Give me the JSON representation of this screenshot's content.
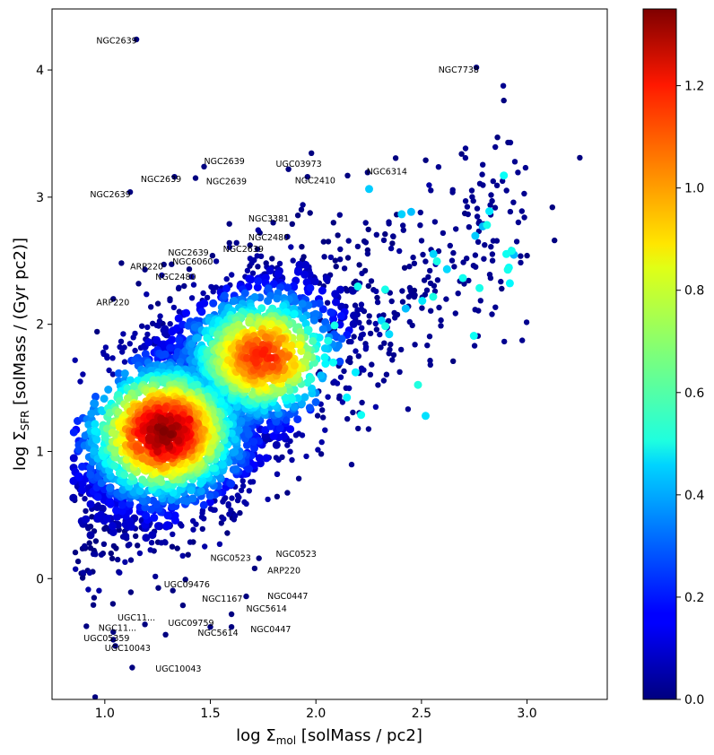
{
  "chart_data": {
    "type": "scatter",
    "xlabel_prefix": "log Σ",
    "xlabel_sub": "mol",
    "xlabel_suffix": " [solMass / pc2]",
    "ylabel_prefix": "log Σ",
    "ylabel_sub": "SFR",
    "ylabel_suffix": " [solMass / (Gyr pc2)]",
    "xlim": [
      0.75,
      3.38
    ],
    "ylim": [
      -0.95,
      4.48
    ],
    "xticks": [
      "1.0",
      "1.5",
      "2.0",
      "2.5",
      "3.0"
    ],
    "yticks": [
      "0",
      "1",
      "2",
      "3",
      "4"
    ],
    "colorbar": {
      "colormap": "jet",
      "range": [
        0.0,
        1.35
      ],
      "ticks": [
        "0.0",
        "0.2",
        "0.4",
        "0.6",
        "0.8",
        "1.0",
        "1.2"
      ]
    },
    "grid": false,
    "points_description": "several thousand points; density-colored; densest core near x≈1.3, y≈1.15",
    "points_sample": [
      {
        "x": 1.15,
        "y": 4.24,
        "c": 0.0
      },
      {
        "x": 2.76,
        "y": 4.02,
        "c": 0.0
      },
      {
        "x": 2.89,
        "y": 3.76,
        "c": 0.0
      },
      {
        "x": 3.25,
        "y": 3.31,
        "c": 0.0
      },
      {
        "x": 2.86,
        "y": 3.47,
        "c": 0.0
      },
      {
        "x": 2.91,
        "y": 3.43,
        "c": 0.0
      },
      {
        "x": 2.69,
        "y": 3.34,
        "c": 0.0
      },
      {
        "x": 2.52,
        "y": 3.29,
        "c": 0.0
      },
      {
        "x": 1.12,
        "y": 3.04,
        "c": 0.0
      },
      {
        "x": 1.33,
        "y": 3.16,
        "c": 0.0
      },
      {
        "x": 1.47,
        "y": 3.24,
        "c": 0.0
      },
      {
        "x": 1.43,
        "y": 3.15,
        "c": 0.0
      },
      {
        "x": 1.87,
        "y": 3.22,
        "c": 0.0
      },
      {
        "x": 1.96,
        "y": 3.16,
        "c": 0.0
      },
      {
        "x": 2.15,
        "y": 3.17,
        "c": 0.0
      },
      {
        "x": 1.59,
        "y": 2.79,
        "c": 0.0
      },
      {
        "x": 1.59,
        "y": 2.64,
        "c": 0.0
      },
      {
        "x": 1.51,
        "y": 2.54,
        "c": 0.0
      },
      {
        "x": 1.28,
        "y": 2.47,
        "c": 0.0
      },
      {
        "x": 1.19,
        "y": 2.43,
        "c": 0.0
      },
      {
        "x": 1.16,
        "y": 2.32,
        "c": 0.0
      },
      {
        "x": 1.04,
        "y": 2.2,
        "c": 0.0
      },
      {
        "x": 3.12,
        "y": 2.92,
        "c": 0.0
      },
      {
        "x": 3.13,
        "y": 2.66,
        "c": 0.0
      },
      {
        "x": 3.0,
        "y": 2.54,
        "c": 0.0
      },
      {
        "x": 2.88,
        "y": 2.28,
        "c": 0.0
      },
      {
        "x": 2.65,
        "y": 1.71,
        "c": 0.0
      },
      {
        "x": 1.73,
        "y": 0.16,
        "c": 0.0
      },
      {
        "x": 1.71,
        "y": 0.08,
        "c": 0.0
      },
      {
        "x": 1.67,
        "y": -0.14,
        "c": 0.0
      },
      {
        "x": 1.6,
        "y": -0.28,
        "c": 0.0
      },
      {
        "x": 1.6,
        "y": -0.38,
        "c": 0.0
      },
      {
        "x": 1.5,
        "y": -0.38,
        "c": 0.0
      },
      {
        "x": 1.37,
        "y": -0.21,
        "c": 0.0
      },
      {
        "x": 1.19,
        "y": -0.36,
        "c": 0.0
      },
      {
        "x": 1.13,
        "y": -0.7,
        "c": 0.0
      },
      {
        "x": 1.04,
        "y": -0.48,
        "c": 0.0
      },
      {
        "x": 1.05,
        "y": -0.53,
        "c": 0.0
      },
      {
        "x": 1.04,
        "y": -0.42,
        "c": 0.0
      },
      {
        "x": 1.3,
        "y": 1.1,
        "c": 1.3
      },
      {
        "x": 1.25,
        "y": 1.0,
        "c": 1.25
      },
      {
        "x": 1.4,
        "y": 1.25,
        "c": 1.2
      }
    ]
  },
  "annotations": [
    {
      "text": "NGC2639",
      "x": 0.96,
      "y": 4.21
    },
    {
      "text": "NGC7738",
      "x": 2.58,
      "y": 3.98
    },
    {
      "text": "NGC2639",
      "x": 1.47,
      "y": 3.26
    },
    {
      "text": "UGC03973",
      "x": 1.81,
      "y": 3.24
    },
    {
      "text": "NGC6314",
      "x": 2.24,
      "y": 3.18
    },
    {
      "text": "NGC2639",
      "x": 1.17,
      "y": 3.12
    },
    {
      "text": "NGC2639",
      "x": 1.48,
      "y": 3.1
    },
    {
      "text": "NGC2410",
      "x": 1.9,
      "y": 3.11
    },
    {
      "text": "NGC2639",
      "x": 0.93,
      "y": 3.0
    },
    {
      "text": "NGC3381",
      "x": 1.68,
      "y": 2.81
    },
    {
      "text": "NGC2480",
      "x": 1.68,
      "y": 2.66
    },
    {
      "text": "NGC2639",
      "x": 1.56,
      "y": 2.57
    },
    {
      "text": "NGC2639",
      "x": 1.3,
      "y": 2.54
    },
    {
      "text": "NGC6060",
      "x": 1.32,
      "y": 2.47
    },
    {
      "text": "ARP220",
      "x": 1.12,
      "y": 2.43
    },
    {
      "text": "NGC2480",
      "x": 1.24,
      "y": 2.35
    },
    {
      "text": "ARP220",
      "x": 0.96,
      "y": 2.15
    },
    {
      "text": "NGC0523",
      "x": 1.81,
      "y": 0.17
    },
    {
      "text": "NGC0523",
      "x": 1.5,
      "y": 0.14
    },
    {
      "text": "ARP220",
      "x": 1.77,
      "y": 0.04
    },
    {
      "text": "UGC09476",
      "x": 1.28,
      "y": -0.07
    },
    {
      "text": "NGC0447",
      "x": 1.77,
      "y": -0.16
    },
    {
      "text": "NGC1167",
      "x": 1.46,
      "y": -0.18
    },
    {
      "text": "NGC5614",
      "x": 1.67,
      "y": -0.26
    },
    {
      "text": "UGC11...",
      "x": 1.06,
      "y": -0.33
    },
    {
      "text": "UGC09759",
      "x": 1.3,
      "y": -0.37
    },
    {
      "text": "NGC11...",
      "x": 0.97,
      "y": -0.41
    },
    {
      "text": "NGC5614",
      "x": 1.44,
      "y": -0.45
    },
    {
      "text": "NGC0447",
      "x": 1.69,
      "y": -0.42
    },
    {
      "text": "UGC05359",
      "x": 0.9,
      "y": -0.49
    },
    {
      "text": "UGC10043",
      "x": 1.0,
      "y": -0.57
    },
    {
      "text": "UGC10043",
      "x": 1.24,
      "y": -0.73
    }
  ]
}
